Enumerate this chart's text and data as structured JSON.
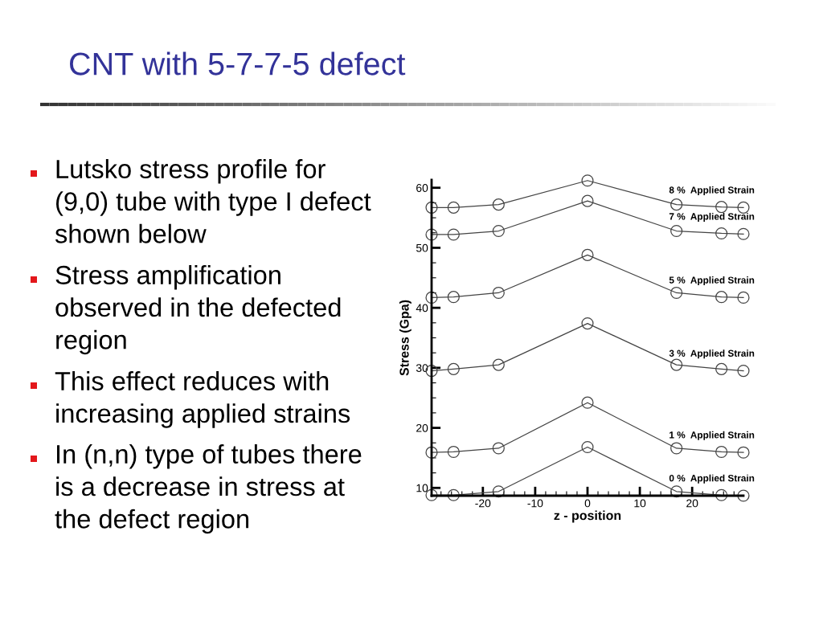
{
  "chart_data": {
    "type": "line",
    "title": "CNT with 5-7-7-5 defect",
    "annotations": [
      "Lutsko stress profile for (9,0) tube with type I defect shown below",
      "Stress amplification observed in the defected region",
      "This effect reduces with increasing applied strains",
      "In (n,n) type of tubes there is a decrease in stress at the defect region"
    ],
    "xlabel": "z - position",
    "ylabel": "Stress (Gpa)",
    "x": [
      -29.8,
      -25.6,
      -17,
      0,
      17,
      25.6,
      29.8
    ],
    "series": [
      {
        "name": "8 %  Applied Strain",
        "color": "#444444",
        "values": [
          56.7,
          56.7,
          57.2,
          61.2,
          57.2,
          56.8,
          56.7
        ]
      },
      {
        "name": "7 %  Applied Strain",
        "color": "#444444",
        "values": [
          52.2,
          52.2,
          52.8,
          57.8,
          52.8,
          52.4,
          52.3
        ]
      },
      {
        "name": "5 %  Applied Strain",
        "color": "#444444",
        "values": [
          41.7,
          41.8,
          42.5,
          48.8,
          42.5,
          41.8,
          41.7
        ]
      },
      {
        "name": "3 %  Applied Strain",
        "color": "#444444",
        "values": [
          29.5,
          29.8,
          30.5,
          37.4,
          30.5,
          29.8,
          29.5
        ]
      },
      {
        "name": "1 %  Applied Strain",
        "color": "#444444",
        "values": [
          15.9,
          16.0,
          16.6,
          24.2,
          16.6,
          16.0,
          15.9
        ]
      },
      {
        "name": "0 %  Applied Strain",
        "color": "#444444",
        "values": [
          8.8,
          8.8,
          9.4,
          16.8,
          9.4,
          8.8,
          8.7
        ]
      }
    ],
    "xlim": [
      -29.8,
      29.8
    ],
    "xticks": [
      -20,
      -10,
      0,
      10,
      20
    ],
    "ylim": [
      8.7,
      61.3
    ],
    "yticks": [
      10,
      20,
      30,
      40,
      50,
      60
    ],
    "grid": false,
    "marker": "circle",
    "line_style": "solid"
  }
}
